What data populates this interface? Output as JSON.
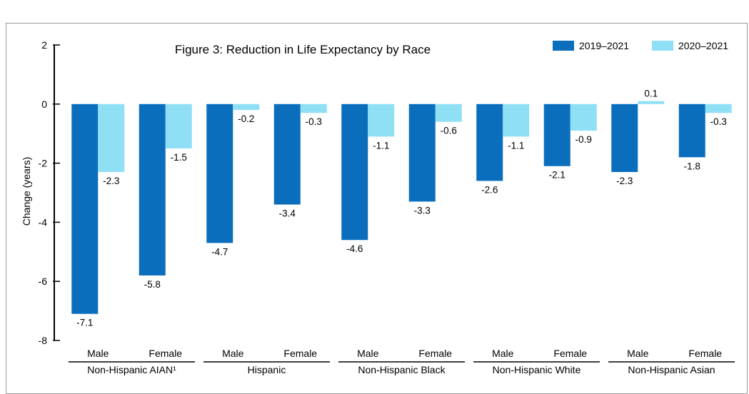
{
  "chart_data": {
    "type": "bar",
    "title": "Figure 3: Reduction in Life Expectancy by Race",
    "ylabel": "Change (years)",
    "xlabel": "",
    "ylim": [
      -8,
      2
    ],
    "yticks": [
      "2",
      "0",
      "-2",
      "-4",
      "-6",
      "-8"
    ],
    "grid": false,
    "legend_position": "top-right",
    "groups": [
      {
        "label": "Non-Hispanic AIAN¹",
        "categories": [
          "Male",
          "Female"
        ]
      },
      {
        "label": "Hispanic",
        "categories": [
          "Male",
          "Female"
        ]
      },
      {
        "label": "Non-Hispanic Black",
        "categories": [
          "Male",
          "Female"
        ]
      },
      {
        "label": "Non-Hispanic White",
        "categories": [
          "Male",
          "Female"
        ]
      },
      {
        "label": "Non-Hispanic Asian",
        "categories": [
          "Male",
          "Female"
        ]
      }
    ],
    "series": [
      {
        "name": "2019–2021",
        "color": "#0a6ebd",
        "values": [
          -7.1,
          -5.8,
          -4.7,
          -3.4,
          -4.6,
          -3.3,
          -2.6,
          -2.1,
          -2.3,
          -1.8
        ],
        "labels": [
          "-7.1",
          "-5.8",
          "-4.7",
          "-3.4",
          "-4.6",
          "-3.3",
          "-2.6",
          "-2.1",
          "-2.3",
          "-1.8"
        ]
      },
      {
        "name": "2020–2021",
        "color": "#8fdff5",
        "values": [
          -2.3,
          -1.5,
          -0.2,
          -0.3,
          -1.1,
          -0.6,
          -1.1,
          -0.9,
          0.1,
          -0.3
        ],
        "labels": [
          "-2.3",
          "-1.5",
          "-0.2",
          "-0.3",
          "-1.1",
          "-0.6",
          "-1.1",
          "-0.9",
          "0.1",
          "-0.3"
        ]
      }
    ]
  }
}
